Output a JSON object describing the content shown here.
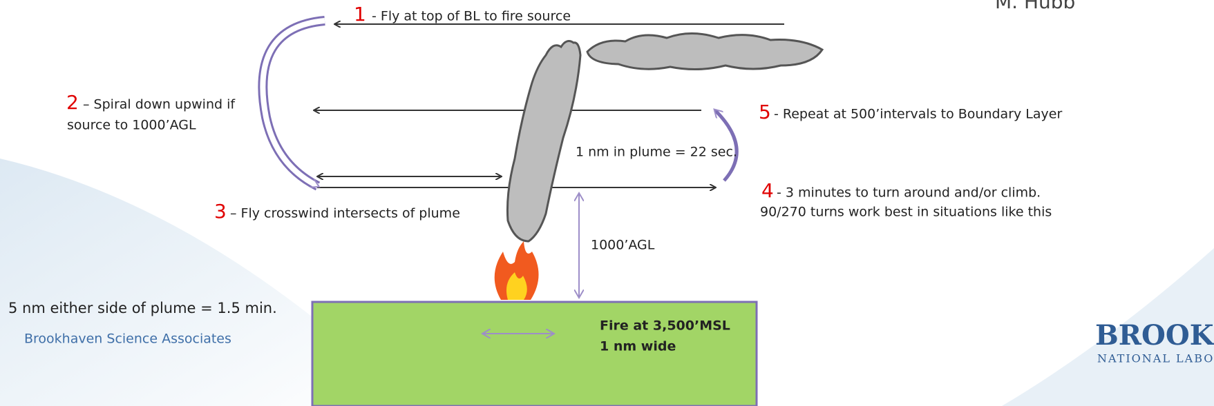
{
  "author": "M. Hubb",
  "steps": [
    {
      "number": "1",
      "lines": [
        "- Fly at top of BL to fire source"
      ]
    },
    {
      "number": "2",
      "lines": [
        "– Spiral down upwind if",
        "source to 1000’AGL"
      ]
    },
    {
      "number": "3",
      "lines": [
        "– Fly crosswind intersects of plume"
      ]
    },
    {
      "number": "4",
      "lines": [
        "- 3 minutes to turn around and/or climb.",
        "90/270 turns work best in situations like this"
      ]
    },
    {
      "number": "5",
      "lines": [
        "- Repeat at 500’intervals to Boundary Layer"
      ]
    }
  ],
  "plume_note": "1 nm in plume = 22 sec.",
  "height_note": "1000’AGL",
  "side_note": "5 nm either side of plume = 1.5 min.",
  "footer": "Brookhaven Science Associates",
  "fire_box": [
    "Fire at 3,500’MSL",
    "1 nm wide"
  ],
  "logo": [
    "BROOKHA",
    "NATIONAL LABO"
  ]
}
